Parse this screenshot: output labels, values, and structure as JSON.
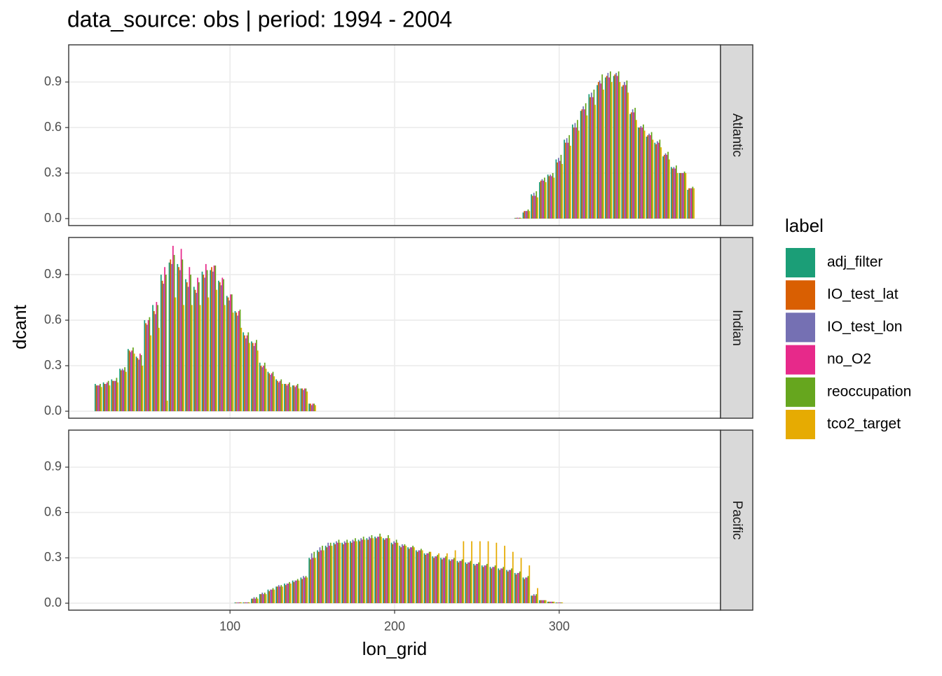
{
  "chart_data": {
    "type": "bar",
    "title": "data_source: obs | period: 1994 - 2004",
    "x_label": "lon_grid",
    "y_label": "dcant",
    "legend_title": "label",
    "xlim": [
      2,
      398
    ],
    "xticks": [
      100,
      200,
      300
    ],
    "ylim": [
      -0.046,
      1.145
    ],
    "yticks": [
      {
        "value": 0,
        "label": "0.0"
      },
      0.3,
      0.6,
      0.9
    ],
    "grid": true,
    "bar_width": 5,
    "series": [
      {
        "name": "adj_filter",
        "color": "#1b9e77"
      },
      {
        "name": "IO_test_lat",
        "color": "#d95f02"
      },
      {
        "name": "IO_test_lon",
        "color": "#7570b3"
      },
      {
        "name": "no_O2",
        "color": "#e7298a"
      },
      {
        "name": "reoccupation",
        "color": "#66a61e"
      },
      {
        "name": "tco2_target",
        "color": "#e6ab02"
      }
    ],
    "facets": [
      {
        "panel": "Atlantic",
        "x": [
          275,
          280,
          285,
          290,
          295,
          300,
          305,
          310,
          315,
          320,
          325,
          330,
          335,
          340,
          345,
          350,
          355,
          360,
          365,
          370,
          375,
          380
        ],
        "values": [
          [
            0.004,
            0.04,
            0.16,
            0.24,
            0.29,
            0.39,
            0.52,
            0.62,
            0.71,
            0.82,
            0.88,
            0.93,
            0.94,
            0.87,
            0.69,
            0.6,
            0.54,
            0.5,
            0.41,
            0.34,
            0.3,
            0.19
          ],
          [
            0.005,
            0.05,
            0.15,
            0.25,
            0.28,
            0.37,
            0.5,
            0.6,
            0.72,
            0.8,
            0.9,
            0.94,
            0.95,
            0.88,
            0.7,
            0.6,
            0.55,
            0.49,
            0.42,
            0.33,
            0.3,
            0.2
          ],
          [
            0.006,
            0.05,
            0.17,
            0.26,
            0.29,
            0.4,
            0.53,
            0.63,
            0.74,
            0.83,
            0.91,
            0.96,
            0.96,
            0.9,
            0.72,
            0.61,
            0.56,
            0.51,
            0.43,
            0.34,
            0.3,
            0.2
          ],
          [
            0.005,
            0.05,
            0.15,
            0.25,
            0.28,
            0.38,
            0.5,
            0.6,
            0.72,
            0.8,
            0.89,
            0.93,
            0.94,
            0.88,
            0.7,
            0.6,
            0.55,
            0.5,
            0.42,
            0.33,
            0.3,
            0.2
          ],
          [
            0.006,
            0.06,
            0.18,
            0.27,
            0.3,
            0.42,
            0.55,
            0.65,
            0.76,
            0.85,
            0.95,
            0.97,
            0.97,
            0.91,
            0.73,
            0.62,
            0.57,
            0.52,
            0.44,
            0.35,
            0.31,
            0.21
          ],
          [
            0.004,
            0.05,
            0.14,
            0.24,
            0.27,
            0.36,
            0.48,
            0.58,
            0.68,
            0.75,
            0.85,
            0.9,
            0.9,
            0.83,
            0.65,
            0.58,
            0.52,
            0.47,
            0.39,
            0.3,
            0.3,
            0.2
          ]
        ]
      },
      {
        "panel": "Indian",
        "x": [
          20,
          25,
          30,
          35,
          40,
          45,
          50,
          55,
          60,
          65,
          70,
          75,
          80,
          85,
          90,
          95,
          100,
          105,
          110,
          115,
          120,
          125,
          130,
          135,
          140,
          145,
          150
        ],
        "values": [
          [
            0.18,
            0.19,
            0.21,
            0.28,
            0.41,
            0.36,
            0.6,
            0.7,
            0.9,
            0.98,
            0.97,
            0.87,
            0.82,
            0.92,
            0.93,
            0.86,
            0.76,
            0.66,
            0.52,
            0.46,
            0.32,
            0.26,
            0.21,
            0.18,
            0.17,
            0.15,
            0.05
          ],
          [
            0.17,
            0.18,
            0.2,
            0.27,
            0.4,
            0.35,
            0.58,
            0.66,
            0.86,
            1.0,
            0.95,
            0.85,
            0.8,
            0.9,
            0.95,
            0.85,
            0.75,
            0.65,
            0.5,
            0.45,
            0.3,
            0.25,
            0.2,
            0.18,
            0.17,
            0.15,
            0.05
          ],
          [
            0.17,
            0.18,
            0.2,
            0.28,
            0.39,
            0.34,
            0.57,
            0.64,
            0.84,
            0.97,
            0.93,
            0.82,
            0.78,
            0.88,
            0.92,
            0.83,
            0.73,
            0.63,
            0.48,
            0.43,
            0.29,
            0.24,
            0.19,
            0.17,
            0.16,
            0.14,
            0.04
          ],
          [
            0.17,
            0.19,
            0.2,
            0.27,
            0.4,
            0.38,
            0.6,
            0.72,
            0.95,
            1.09,
            1.07,
            0.95,
            0.88,
            0.97,
            0.96,
            0.88,
            0.77,
            0.66,
            0.5,
            0.45,
            0.3,
            0.25,
            0.2,
            0.18,
            0.17,
            0.15,
            0.05
          ],
          [
            0.18,
            0.2,
            0.22,
            0.29,
            0.42,
            0.37,
            0.62,
            0.7,
            0.9,
            1.03,
            1.0,
            0.9,
            0.85,
            0.93,
            0.96,
            0.87,
            0.77,
            0.67,
            0.52,
            0.47,
            0.32,
            0.26,
            0.21,
            0.19,
            0.18,
            0.15,
            0.05
          ],
          [
            0.16,
            0.17,
            0.19,
            0.26,
            0.38,
            0.3,
            0.5,
            0.55,
            0.07,
            0.75,
            0.7,
            0.7,
            0.7,
            0.75,
            0.8,
            0.7,
            0.65,
            0.55,
            0.45,
            0.4,
            0.28,
            0.23,
            0.18,
            0.16,
            0.15,
            0.13,
            0.04
          ]
        ]
      },
      {
        "panel": "Pacific",
        "x": [
          105,
          110,
          115,
          120,
          125,
          130,
          135,
          140,
          145,
          150,
          155,
          160,
          165,
          170,
          175,
          180,
          185,
          190,
          195,
          200,
          205,
          210,
          215,
          220,
          225,
          230,
          235,
          240,
          245,
          250,
          255,
          260,
          265,
          270,
          275,
          280,
          285,
          290,
          295,
          300
        ],
        "values": [
          [
            0.005,
            0.005,
            0.03,
            0.06,
            0.09,
            0.11,
            0.13,
            0.15,
            0.17,
            0.3,
            0.35,
            0.38,
            0.4,
            0.4,
            0.41,
            0.42,
            0.43,
            0.44,
            0.43,
            0.4,
            0.38,
            0.37,
            0.35,
            0.33,
            0.31,
            0.3,
            0.29,
            0.28,
            0.27,
            0.26,
            0.25,
            0.24,
            0.23,
            0.22,
            0.2,
            0.17,
            0.05,
            0.02,
            0.01,
            0.005
          ],
          [
            0.004,
            0.005,
            0.03,
            0.06,
            0.08,
            0.11,
            0.12,
            0.14,
            0.16,
            0.29,
            0.34,
            0.37,
            0.39,
            0.39,
            0.4,
            0.41,
            0.42,
            0.43,
            0.42,
            0.39,
            0.37,
            0.36,
            0.34,
            0.32,
            0.3,
            0.29,
            0.28,
            0.27,
            0.26,
            0.25,
            0.24,
            0.23,
            0.22,
            0.21,
            0.19,
            0.16,
            0.05,
            0.02,
            0.01,
            0.004
          ],
          [
            0.005,
            0.006,
            0.04,
            0.07,
            0.09,
            0.12,
            0.13,
            0.15,
            0.18,
            0.33,
            0.37,
            0.4,
            0.41,
            0.41,
            0.42,
            0.43,
            0.44,
            0.44,
            0.43,
            0.41,
            0.39,
            0.37,
            0.35,
            0.33,
            0.31,
            0.3,
            0.29,
            0.28,
            0.27,
            0.26,
            0.25,
            0.24,
            0.23,
            0.22,
            0.2,
            0.17,
            0.06,
            0.02,
            0.01,
            0.005
          ],
          [
            0.005,
            0.005,
            0.03,
            0.06,
            0.09,
            0.11,
            0.13,
            0.15,
            0.17,
            0.3,
            0.35,
            0.38,
            0.4,
            0.4,
            0.41,
            0.42,
            0.43,
            0.44,
            0.43,
            0.4,
            0.38,
            0.37,
            0.35,
            0.33,
            0.31,
            0.3,
            0.29,
            0.28,
            0.27,
            0.26,
            0.25,
            0.24,
            0.23,
            0.22,
            0.2,
            0.17,
            0.05,
            0.02,
            0.01,
            0.005
          ],
          [
            0.006,
            0.006,
            0.04,
            0.07,
            0.1,
            0.12,
            0.14,
            0.16,
            0.18,
            0.34,
            0.38,
            0.4,
            0.42,
            0.42,
            0.43,
            0.44,
            0.45,
            0.46,
            0.45,
            0.42,
            0.39,
            0.38,
            0.36,
            0.34,
            0.32,
            0.31,
            0.3,
            0.29,
            0.28,
            0.27,
            0.26,
            0.25,
            0.24,
            0.23,
            0.21,
            0.18,
            0.06,
            0.02,
            0.01,
            0.005
          ],
          [
            0.005,
            0.005,
            0.03,
            0.06,
            0.09,
            0.11,
            0.13,
            0.15,
            0.17,
            0.3,
            0.35,
            0.38,
            0.4,
            0.4,
            0.41,
            0.42,
            0.43,
            0.44,
            0.43,
            0.4,
            0.38,
            0.37,
            0.35,
            0.34,
            0.33,
            0.33,
            0.35,
            0.41,
            0.41,
            0.41,
            0.41,
            0.4,
            0.38,
            0.34,
            0.3,
            0.25,
            0.1,
            0.02,
            0.01,
            0.005
          ]
        ]
      }
    ]
  }
}
